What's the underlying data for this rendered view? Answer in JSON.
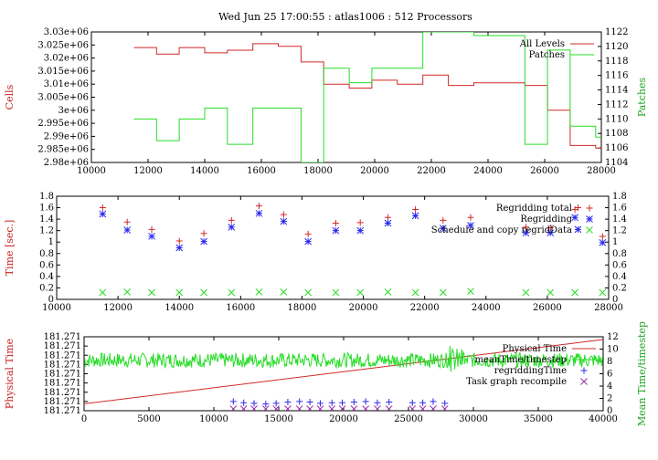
{
  "title": "Wed Jun 25 17:00:55 : atlas1006 : 512 Processors",
  "colors": {
    "red": "#d22828",
    "green": "#26dd26",
    "blue": "#2a2aee",
    "purple": "#9a2ea8",
    "axis": "#000000"
  },
  "chart_data": [
    {
      "type": "line",
      "ylabel": "Cells",
      "y2label": "Patches",
      "xlim": [
        10000,
        28000
      ],
      "ylim": [
        2980000.0,
        3030000.0
      ],
      "y2lim": [
        1104,
        1122
      ],
      "xticks": [
        "10000",
        "12000",
        "14000",
        "16000",
        "18000",
        "20000",
        "22000",
        "24000",
        "26000",
        "28000"
      ],
      "yticks": [
        "2.98e+06",
        "2.985e+06",
        "2.99e+06",
        "2.995e+06",
        "3e+06",
        "3.005e+06",
        "3.01e+06",
        "3.015e+06",
        "3.02e+06",
        "3.025e+06",
        "3.03e+06"
      ],
      "y2ticks": [
        "1104",
        "1106",
        "1108",
        "1110",
        "1112",
        "1114",
        "1116",
        "1118",
        "1120",
        "1122"
      ],
      "series": [
        {
          "name": "All Levels",
          "axis": "left",
          "color": "#d22828",
          "x": [
            11500,
            12300,
            13100,
            14000,
            14800,
            15700,
            16600,
            17400,
            18200,
            19100,
            19900,
            20800,
            21700,
            22600,
            23500,
            24400,
            25300,
            26100,
            26900,
            27800
          ],
          "y": [
            3024000.0,
            3021500.0,
            3024000.0,
            3022000.0,
            3023000.0,
            3025500.0,
            3024500.0,
            3018500.0,
            3010000.0,
            3008500.0,
            3011500.0,
            3010000.0,
            3013500.0,
            3009500.0,
            3010500.0,
            3010500.0,
            3009500.0,
            3000000.0,
            2986500.0,
            2985500.0
          ]
        },
        {
          "name": "Patches",
          "axis": "right",
          "color": "#26dd26",
          "x": [
            11500,
            12300,
            13100,
            14000,
            14800,
            15700,
            16600,
            17400,
            18200,
            19100,
            19900,
            20800,
            21700,
            22600,
            23500,
            24400,
            25300,
            26100,
            26900,
            27800
          ],
          "y": [
            1110,
            1107,
            1110,
            1111.5,
            1106.5,
            1111.5,
            1111.5,
            1104,
            1117,
            1115,
            1117,
            1117,
            1122,
            1122,
            1121.5,
            1121.5,
            1106.5,
            1119.5,
            1109,
            1107.5
          ]
        }
      ]
    },
    {
      "type": "scatter",
      "ylabel": "Time [sec.]",
      "xlim": [
        10000,
        28000
      ],
      "ylim": [
        0,
        1.8
      ],
      "y2lim": [
        0,
        1.8
      ],
      "xticks": [
        "10000",
        "12000",
        "14000",
        "16000",
        "18000",
        "20000",
        "22000",
        "24000",
        "26000",
        "28000"
      ],
      "yticks": [
        "0",
        "0.2",
        "0.4",
        "0.6",
        "0.8",
        "1",
        "1.2",
        "1.4",
        "1.6",
        "1.8"
      ],
      "y2ticks": [
        "0",
        "0.2",
        "0.4",
        "0.6",
        "0.8",
        "1",
        "1.2",
        "1.4",
        "1.6",
        "1.8"
      ],
      "series": [
        {
          "name": "Regridding total",
          "marker": "+",
          "color": "#d22828",
          "x": [
            11500,
            12300,
            13100,
            14000,
            14800,
            15700,
            16600,
            17400,
            18200,
            19100,
            19900,
            20800,
            21700,
            22600,
            23500,
            25300,
            26100,
            26900,
            27000,
            27800
          ],
          "y": [
            1.6,
            1.35,
            1.22,
            1.02,
            1.15,
            1.38,
            1.63,
            1.48,
            1.14,
            1.33,
            1.34,
            1.43,
            1.57,
            1.38,
            1.43,
            1.26,
            1.25,
            1.57,
            1.6,
            1.1
          ]
        },
        {
          "name": "Regridding",
          "marker": "*",
          "color": "#2a2aee",
          "x": [
            11500,
            12300,
            13100,
            14000,
            14800,
            15700,
            16600,
            17400,
            18200,
            19100,
            19900,
            20800,
            21700,
            22600,
            23500,
            25300,
            26100,
            26900,
            27000,
            27800
          ],
          "y": [
            1.49,
            1.21,
            1.1,
            0.9,
            1.01,
            1.26,
            1.5,
            1.36,
            1.01,
            1.2,
            1.2,
            1.33,
            1.46,
            1.24,
            1.29,
            1.16,
            1.16,
            1.43,
            1.22,
            0.99
          ]
        },
        {
          "name": "Schedule and copy regridData",
          "marker": "x",
          "color": "#26dd26",
          "x": [
            11500,
            12300,
            13100,
            14000,
            14800,
            15700,
            16600,
            17400,
            18200,
            19100,
            19900,
            20800,
            21700,
            22600,
            23500,
            25300,
            26100,
            26900,
            27800
          ],
          "y": [
            0.12,
            0.13,
            0.12,
            0.12,
            0.12,
            0.12,
            0.13,
            0.13,
            0.12,
            0.12,
            0.12,
            0.13,
            0.12,
            0.12,
            0.14,
            0.12,
            0.12,
            0.12,
            0.12
          ]
        }
      ]
    },
    {
      "type": "line",
      "ylabel": "Physical Time",
      "y2label": "Mean Time/timestep",
      "xlim": [
        0,
        40000
      ],
      "ylim": [
        0,
        8
      ],
      "y2lim": [
        0,
        12
      ],
      "xticks": [
        "0",
        "5000",
        "10000",
        "15000",
        "20000",
        "25000",
        "30000",
        "35000",
        "40000"
      ],
      "yticks": [
        "181.271",
        "181.271",
        "181.271",
        "181.271",
        "181.271",
        "181.271",
        "181.271",
        "181.271",
        "181.271"
      ],
      "y2ticks": [
        "0",
        "2",
        "4",
        "6",
        "8",
        "10",
        "12"
      ],
      "series": [
        {
          "name": "Physical Time",
          "axis": "left",
          "color": "#d22828",
          "x": [
            0,
            40000
          ],
          "y": [
            0.75,
            7.7
          ]
        },
        {
          "name": "meanTime/timestep",
          "axis": "right",
          "color": "#26dd26",
          "mean": 8.2,
          "spread": 1.2
        },
        {
          "name": "regriddingTime",
          "axis": "right",
          "marker": "+",
          "color": "#2a2aee",
          "x": [
            11500,
            12300,
            13100,
            14000,
            14800,
            15700,
            16600,
            17400,
            18200,
            19100,
            19900,
            20800,
            21700,
            22600,
            23500,
            25300,
            26100,
            26900,
            27800
          ],
          "y": [
            1.5,
            1.3,
            1.2,
            1.1,
            1.2,
            1.4,
            1.5,
            1.4,
            1.2,
            1.3,
            1.3,
            1.4,
            1.5,
            1.3,
            1.4,
            1.3,
            1.3,
            1.5,
            1.2
          ]
        },
        {
          "name": "Task graph recompile",
          "axis": "right",
          "marker": "x",
          "color": "#9a2ea8",
          "x": [
            11500,
            12300,
            13100,
            14000,
            14800,
            15700,
            16600,
            17400,
            18200,
            19100,
            19900,
            20800,
            21700,
            22600,
            23500,
            25300,
            26100,
            26900,
            27800
          ],
          "y": [
            0.3,
            0.3,
            0.3,
            0.3,
            0.3,
            0.3,
            0.3,
            0.3,
            0.3,
            0.3,
            0.3,
            0.3,
            0.3,
            0.3,
            0.3,
            0.3,
            0.3,
            0.3,
            0.3
          ]
        }
      ]
    }
  ]
}
